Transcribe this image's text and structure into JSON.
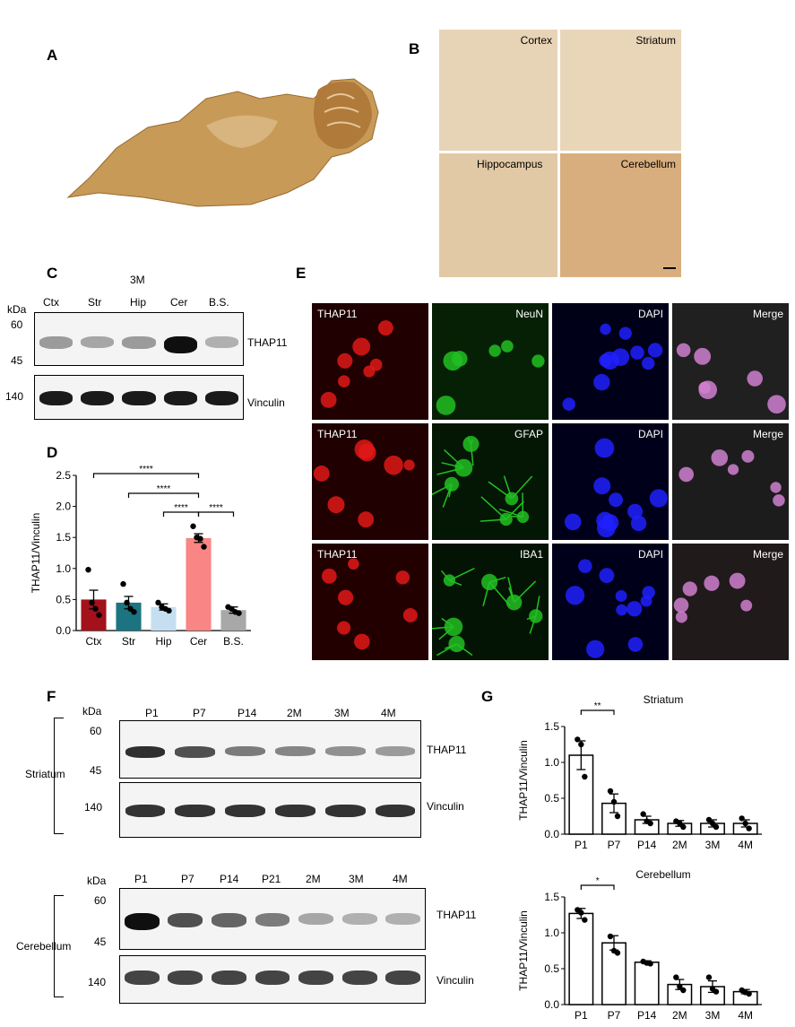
{
  "panels": {
    "A": "A",
    "B": "B",
    "C": "C",
    "D": "D",
    "E": "E",
    "F": "F",
    "G": "G"
  },
  "panel_b": {
    "regions": [
      "Cortex",
      "Striatum",
      "Hippocampus",
      "Cerebellum"
    ]
  },
  "panel_c": {
    "group": "3M",
    "lanes": [
      "Ctx",
      "Str",
      "Hip",
      "Cer",
      "B.S."
    ],
    "kda_label": "kDa",
    "markers": [
      "60",
      "45",
      "140"
    ],
    "proteins": [
      "THAP11",
      "Vinculin"
    ],
    "thap11_intensity": [
      0.35,
      0.3,
      0.35,
      1.0,
      0.25
    ]
  },
  "panel_e": {
    "rows": [
      [
        "THAP11",
        "NeuN",
        "DAPI",
        "Merge"
      ],
      [
        "THAP11",
        "GFAP",
        "DAPI",
        "Merge"
      ],
      [
        "THAP11",
        "IBA1",
        "DAPI",
        "Merge"
      ]
    ]
  },
  "panel_f": {
    "kda_label": "kDa",
    "striatum": {
      "region": "Striatum",
      "lanes": [
        "P1",
        "P7",
        "P14",
        "2M",
        "3M",
        "4M"
      ],
      "markers": [
        "60",
        "45",
        "140"
      ],
      "proteins": [
        "THAP11",
        "Vinculin"
      ],
      "thap11_intensity": [
        0.85,
        0.7,
        0.5,
        0.45,
        0.4,
        0.35
      ]
    },
    "cerebellum": {
      "region": "Cerebellum",
      "lanes": [
        "P1",
        "P7",
        "P14",
        "P21",
        "2M",
        "3M",
        "4M"
      ],
      "markers": [
        "60",
        "45",
        "140"
      ],
      "proteins": [
        "THAP11",
        "Vinculin"
      ],
      "thap11_intensity": [
        1.0,
        0.7,
        0.6,
        0.5,
        0.3,
        0.25,
        0.25
      ]
    }
  },
  "chart_data": [
    {
      "type": "bar",
      "panel": "D",
      "categories": [
        "Ctx",
        "Str",
        "Hip",
        "Cer",
        "B.S."
      ],
      "values": [
        0.5,
        0.45,
        0.38,
        1.49,
        0.33
      ],
      "errors": [
        0.15,
        0.1,
        0.05,
        0.07,
        0.05
      ],
      "points": [
        [
          0.98,
          0.45,
          0.35,
          0.25
        ],
        [
          0.75,
          0.45,
          0.35,
          0.3
        ],
        [
          0.45,
          0.38,
          0.35,
          0.32
        ],
        [
          1.68,
          1.5,
          1.48,
          1.35
        ],
        [
          0.38,
          0.35,
          0.3,
          0.28
        ]
      ],
      "colors": [
        "#a3111a",
        "#1b7480",
        "#c5dff0",
        "#f98584",
        "#a8a8a8"
      ],
      "ylabel": "THAP11/Vinculin",
      "ylim": [
        0,
        2.5
      ],
      "yticks": [
        "0.0",
        "0.5",
        "1.0",
        "1.5",
        "2.0",
        "2.5"
      ],
      "significance": [
        {
          "from": 0,
          "to": 3,
          "label": "****"
        },
        {
          "from": 1,
          "to": 3,
          "label": "****"
        },
        {
          "from": 2,
          "to": 3,
          "label": "****"
        },
        {
          "from": 3,
          "to": 4,
          "label": "****"
        }
      ]
    },
    {
      "type": "bar",
      "panel": "G",
      "title": "Striatum",
      "categories": [
        "P1",
        "P7",
        "P14",
        "2M",
        "3M",
        "4M"
      ],
      "values": [
        1.1,
        0.43,
        0.2,
        0.15,
        0.15,
        0.15
      ],
      "errors": [
        0.2,
        0.13,
        0.05,
        0.04,
        0.05,
        0.05
      ],
      "points": [
        [
          1.32,
          1.25,
          0.8
        ],
        [
          0.6,
          0.45,
          0.25
        ],
        [
          0.28,
          0.18,
          0.15
        ],
        [
          0.18,
          0.15,
          0.1
        ],
        [
          0.2,
          0.15,
          0.1
        ],
        [
          0.22,
          0.15,
          0.08
        ]
      ],
      "ylabel": "THAP11/Vinculin",
      "ylim": [
        0,
        1.5
      ],
      "yticks": [
        "0.0",
        "0.5",
        "1.0",
        "1.5"
      ],
      "significance": [
        {
          "from": 0,
          "to": 1,
          "label": "**"
        }
      ]
    },
    {
      "type": "bar",
      "panel": "G",
      "title": "Cerebellum",
      "categories": [
        "P1",
        "P7",
        "P14",
        "2M",
        "3M",
        "4M"
      ],
      "values": [
        1.27,
        0.86,
        0.59,
        0.28,
        0.25,
        0.18
      ],
      "errors": [
        0.07,
        0.1,
        0.02,
        0.07,
        0.08,
        0.03
      ],
      "points": [
        [
          1.32,
          1.28,
          1.18
        ],
        [
          0.95,
          0.75,
          0.72
        ],
        [
          0.6,
          0.58,
          0.57
        ],
        [
          0.38,
          0.25,
          0.2
        ],
        [
          0.38,
          0.22,
          0.18
        ],
        [
          0.2,
          0.17,
          0.15
        ]
      ],
      "ylabel": "THAP11/Vinculin",
      "ylim": [
        0,
        1.5
      ],
      "yticks": [
        "0.0",
        "0.5",
        "1.0",
        "1.5"
      ],
      "significance": [
        {
          "from": 0,
          "to": 1,
          "label": "*"
        }
      ]
    }
  ]
}
